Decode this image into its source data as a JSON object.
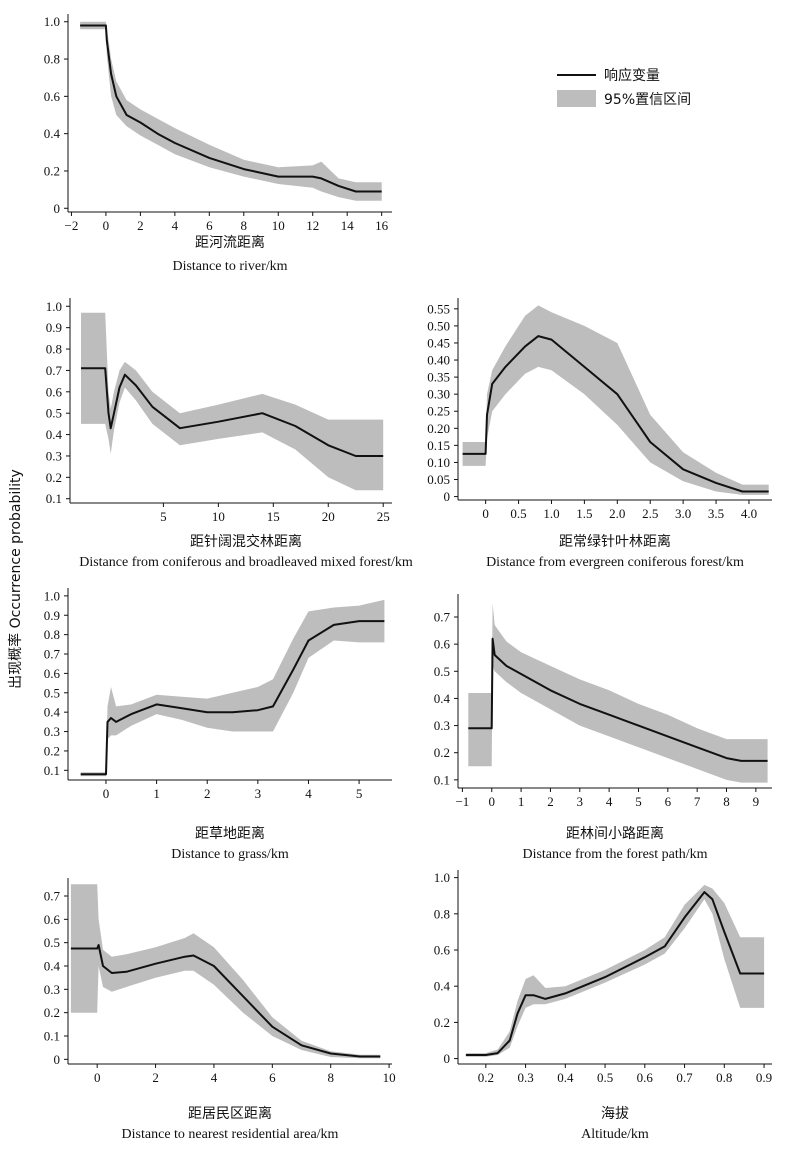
{
  "ylabel": "出现概率 Occurrence probability",
  "legend": {
    "line_label": "响应变量",
    "band_label": "95%置信区间",
    "line_color": "#111111",
    "band_color": "#bdbdbd"
  },
  "chart_data": [
    {
      "type": "line",
      "title_cn": "距河流距离",
      "xlabel": "Distance to river/km",
      "xlim": [
        -2.2,
        16.6
      ],
      "ylim": [
        -0.02,
        1.02
      ],
      "xticks": [
        -2,
        0,
        2,
        4,
        6,
        8,
        10,
        12,
        14,
        16
      ],
      "yticks": [
        0,
        0.2,
        0.4,
        0.6,
        0.8,
        1.0
      ],
      "ytick_labels": [
        "0",
        "0.2",
        "0.4",
        "0.6",
        "0.8",
        "1.0"
      ],
      "series": [
        {
          "x": [
            -1.5,
            0,
            0.05,
            0.3,
            0.6,
            1.2,
            2,
            3,
            4,
            6,
            8,
            10,
            12,
            12.5,
            13.5,
            14.5,
            16
          ],
          "y": [
            0.98,
            0.98,
            0.9,
            0.72,
            0.6,
            0.5,
            0.46,
            0.4,
            0.35,
            0.27,
            0.21,
            0.17,
            0.17,
            0.16,
            0.12,
            0.09,
            0.09
          ],
          "lower": [
            0.96,
            0.96,
            0.82,
            0.6,
            0.5,
            0.44,
            0.39,
            0.34,
            0.29,
            0.22,
            0.17,
            0.13,
            0.11,
            0.09,
            0.06,
            0.04,
            0.04
          ],
          "upper": [
            1.0,
            1.0,
            0.97,
            0.8,
            0.68,
            0.58,
            0.53,
            0.48,
            0.43,
            0.34,
            0.26,
            0.22,
            0.23,
            0.25,
            0.16,
            0.14,
            0.14
          ]
        }
      ]
    },
    {
      "type": "line",
      "title_cn": "距针阔混交林距离",
      "xlabel": "Distance from coniferous and broadleaved mixed forest/km",
      "xlim": [
        -3.5,
        25.8
      ],
      "ylim": [
        0.08,
        1.02
      ],
      "xticks": [
        5,
        10,
        15,
        20,
        25
      ],
      "yticks": [
        0.1,
        0.2,
        0.3,
        0.4,
        0.5,
        0.6,
        0.7,
        0.8,
        0.9,
        1.0
      ],
      "ytick_labels": [
        "0.1",
        "0.2",
        "0.3",
        "0.4",
        "0.5",
        "0.6",
        "0.7",
        "0.8",
        "0.9",
        "1.0"
      ],
      "series": [
        {
          "x": [
            -2.5,
            -0.3,
            0,
            0.2,
            0.5,
            1,
            1.5,
            2.5,
            4,
            6.5,
            10,
            14,
            17,
            20,
            22.5,
            25
          ],
          "y": [
            0.71,
            0.71,
            0.5,
            0.43,
            0.5,
            0.62,
            0.68,
            0.63,
            0.53,
            0.43,
            0.46,
            0.5,
            0.44,
            0.35,
            0.3,
            0.3
          ],
          "lower": [
            0.45,
            0.45,
            0.38,
            0.31,
            0.42,
            0.55,
            0.62,
            0.56,
            0.45,
            0.35,
            0.38,
            0.41,
            0.33,
            0.2,
            0.14,
            0.14
          ],
          "upper": [
            0.97,
            0.97,
            0.6,
            0.52,
            0.6,
            0.7,
            0.74,
            0.7,
            0.6,
            0.5,
            0.54,
            0.59,
            0.54,
            0.47,
            0.47,
            0.47
          ]
        }
      ]
    },
    {
      "type": "line",
      "title_cn": "距常绿针叶林距离",
      "xlabel": "Distance from evergreen coniferous forest/km",
      "xlim": [
        -0.42,
        4.35
      ],
      "ylim": [
        -0.01,
        0.57
      ],
      "xticks": [
        0,
        0.5,
        1.0,
        1.5,
        2.0,
        2.5,
        3.0,
        3.5,
        4.0
      ],
      "xtick_labels": [
        "0",
        "0.5",
        "1.0",
        "1.5",
        "2.0",
        "2.5",
        "3.0",
        "3.5",
        "4.0"
      ],
      "yticks": [
        0,
        0.05,
        0.1,
        0.15,
        0.2,
        0.25,
        0.3,
        0.35,
        0.4,
        0.45,
        0.5,
        0.55
      ],
      "ytick_labels": [
        "0",
        "0.05",
        "0.10",
        "0.15",
        "0.20",
        "0.25",
        "0.30",
        "0.35",
        "0.40",
        "0.45",
        "0.50",
        "0.55"
      ],
      "series": [
        {
          "x": [
            -0.35,
            0,
            0.02,
            0.1,
            0.3,
            0.6,
            0.8,
            1.0,
            1.5,
            2.0,
            2.5,
            3.0,
            3.5,
            3.9,
            4.3
          ],
          "y": [
            0.125,
            0.125,
            0.24,
            0.33,
            0.38,
            0.44,
            0.47,
            0.46,
            0.38,
            0.3,
            0.16,
            0.08,
            0.04,
            0.015,
            0.015
          ],
          "lower": [
            0.09,
            0.09,
            0.17,
            0.25,
            0.3,
            0.36,
            0.38,
            0.37,
            0.3,
            0.21,
            0.1,
            0.045,
            0.015,
            0.005,
            0.005
          ],
          "upper": [
            0.16,
            0.16,
            0.3,
            0.37,
            0.44,
            0.53,
            0.56,
            0.54,
            0.5,
            0.45,
            0.24,
            0.13,
            0.07,
            0.035,
            0.035
          ]
        }
      ]
    },
    {
      "type": "line",
      "title_cn": "距草地距离",
      "xlabel": "Distance to grass/km",
      "xlim": [
        -0.75,
        5.65
      ],
      "ylim": [
        0.05,
        1.02
      ],
      "xticks": [
        0,
        1,
        2,
        3,
        4,
        5
      ],
      "yticks": [
        0.1,
        0.2,
        0.3,
        0.4,
        0.5,
        0.6,
        0.7,
        0.8,
        0.9,
        1.0
      ],
      "ytick_labels": [
        "0.1",
        "0.2",
        "0.3",
        "0.4",
        "0.5",
        "0.6",
        "0.7",
        "0.8",
        "0.9",
        "1.0"
      ],
      "series": [
        {
          "x": [
            -0.5,
            0,
            0.03,
            0.1,
            0.2,
            0.5,
            1.0,
            1.5,
            2.0,
            2.5,
            3.0,
            3.3,
            3.7,
            4.0,
            4.5,
            5.0,
            5.5
          ],
          "y": [
            0.08,
            0.08,
            0.35,
            0.37,
            0.35,
            0.39,
            0.44,
            0.42,
            0.4,
            0.4,
            0.41,
            0.43,
            0.62,
            0.77,
            0.85,
            0.87,
            0.87
          ],
          "lower": [
            0.07,
            0.07,
            0.26,
            0.28,
            0.28,
            0.33,
            0.39,
            0.36,
            0.32,
            0.3,
            0.3,
            0.3,
            0.5,
            0.68,
            0.77,
            0.76,
            0.76
          ],
          "upper": [
            0.09,
            0.09,
            0.43,
            0.53,
            0.43,
            0.44,
            0.49,
            0.48,
            0.47,
            0.5,
            0.53,
            0.57,
            0.78,
            0.92,
            0.94,
            0.95,
            0.98
          ]
        }
      ]
    },
    {
      "type": "line",
      "title_cn": "距林间小路距离",
      "xlabel": "Distance from the forest path/km",
      "xlim": [
        -1.15,
        9.55
      ],
      "ylim": [
        0.07,
        0.77
      ],
      "xticks": [
        -1,
        0,
        1,
        2,
        3,
        4,
        5,
        6,
        7,
        8,
        9
      ],
      "yticks": [
        0.1,
        0.2,
        0.3,
        0.4,
        0.5,
        0.6,
        0.7
      ],
      "ytick_labels": [
        "0.1",
        "0.2",
        "0.3",
        "0.4",
        "0.5",
        "0.6",
        "0.7"
      ],
      "series": [
        {
          "x": [
            -0.8,
            0,
            0.03,
            0.1,
            0.5,
            1,
            2,
            3,
            4,
            5,
            6,
            7,
            8,
            8.5,
            9.4
          ],
          "y": [
            0.29,
            0.29,
            0.62,
            0.56,
            0.52,
            0.49,
            0.43,
            0.38,
            0.34,
            0.3,
            0.26,
            0.22,
            0.18,
            0.17,
            0.17
          ],
          "lower": [
            0.15,
            0.15,
            0.52,
            0.5,
            0.46,
            0.42,
            0.36,
            0.3,
            0.26,
            0.22,
            0.18,
            0.14,
            0.1,
            0.09,
            0.09
          ],
          "upper": [
            0.42,
            0.42,
            0.75,
            0.67,
            0.61,
            0.57,
            0.52,
            0.47,
            0.43,
            0.38,
            0.34,
            0.29,
            0.25,
            0.25,
            0.25
          ]
        }
      ]
    },
    {
      "type": "line",
      "title_cn": "距居民区距离",
      "xlabel": "Distance to nearest residential area/km",
      "xlim": [
        -1.0,
        10.1
      ],
      "ylim": [
        -0.02,
        0.76
      ],
      "xticks": [
        0,
        2,
        4,
        6,
        8,
        10
      ],
      "yticks": [
        0,
        0.1,
        0.2,
        0.3,
        0.4,
        0.5,
        0.6,
        0.7
      ],
      "ytick_labels": [
        "0",
        "0.1",
        "0.2",
        "0.3",
        "0.4",
        "0.5",
        "0.6",
        "0.7"
      ],
      "series": [
        {
          "x": [
            -0.9,
            0,
            0.05,
            0.2,
            0.5,
            1,
            2,
            3,
            3.3,
            4,
            5,
            6,
            7,
            8,
            9,
            9.7
          ],
          "y": [
            0.475,
            0.475,
            0.49,
            0.4,
            0.37,
            0.375,
            0.41,
            0.44,
            0.445,
            0.4,
            0.27,
            0.14,
            0.06,
            0.025,
            0.012,
            0.012
          ],
          "lower": [
            0.2,
            0.2,
            0.4,
            0.31,
            0.29,
            0.31,
            0.35,
            0.38,
            0.38,
            0.32,
            0.2,
            0.1,
            0.04,
            0.01,
            0.005,
            0.005
          ],
          "upper": [
            0.75,
            0.75,
            0.6,
            0.47,
            0.44,
            0.45,
            0.48,
            0.52,
            0.54,
            0.48,
            0.34,
            0.18,
            0.08,
            0.035,
            0.02,
            0.02
          ]
        }
      ]
    },
    {
      "type": "line",
      "title_cn": "海拔",
      "xlabel": "Altitude/km",
      "xlim": [
        0.13,
        0.92
      ],
      "ylim": [
        -0.03,
        1.02
      ],
      "xticks": [
        0.2,
        0.3,
        0.4,
        0.5,
        0.6,
        0.7,
        0.8,
        0.9
      ],
      "yticks": [
        0,
        0.2,
        0.4,
        0.6,
        0.8,
        1.0
      ],
      "ytick_labels": [
        "0",
        "0.2",
        "0.4",
        "0.6",
        "0.8",
        "1.0"
      ],
      "series": [
        {
          "x": [
            0.15,
            0.2,
            0.23,
            0.26,
            0.28,
            0.3,
            0.32,
            0.35,
            0.4,
            0.5,
            0.6,
            0.65,
            0.7,
            0.75,
            0.77,
            0.8,
            0.84,
            0.9
          ],
          "y": [
            0.02,
            0.02,
            0.03,
            0.1,
            0.25,
            0.35,
            0.35,
            0.33,
            0.36,
            0.45,
            0.56,
            0.62,
            0.78,
            0.92,
            0.88,
            0.7,
            0.47,
            0.47
          ],
          "lower": [
            0.01,
            0.01,
            0.02,
            0.06,
            0.18,
            0.28,
            0.3,
            0.3,
            0.33,
            0.42,
            0.52,
            0.58,
            0.72,
            0.88,
            0.8,
            0.55,
            0.28,
            0.28
          ],
          "upper": [
            0.03,
            0.03,
            0.05,
            0.15,
            0.32,
            0.44,
            0.46,
            0.39,
            0.4,
            0.49,
            0.6,
            0.67,
            0.85,
            0.96,
            0.94,
            0.86,
            0.67,
            0.67
          ]
        }
      ]
    }
  ]
}
